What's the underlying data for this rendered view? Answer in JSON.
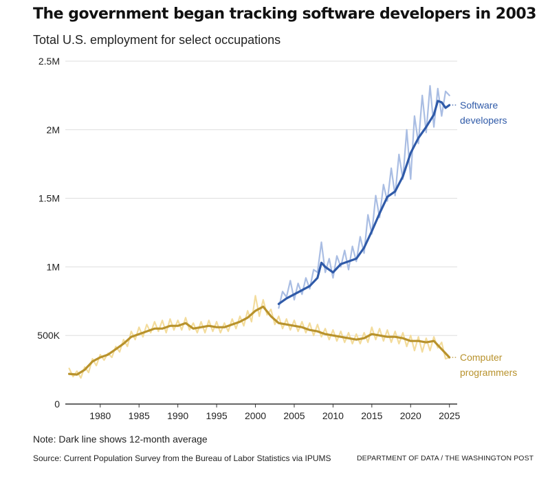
{
  "title": "The government began tracking software developers in 2003",
  "subtitle": "Total U.S. employment for select occupations",
  "note": "Note: Dark line shows 12-month average",
  "source": "Source: Current Population Survey from the Bureau of Labor Statistics via IPUMS",
  "credit": "DEPARTMENT OF DATA / THE WASHINGTON POST",
  "colors": {
    "software_dark": "#2f5aa8",
    "software_light": "#a9bde3",
    "programmers_dark": "#b8922c",
    "programmers_light": "#f3dc9c",
    "grid": "#dddddd",
    "axis": "#333333"
  },
  "chart_data": {
    "type": "line",
    "xlim": [
      1975.5,
      2026
    ],
    "ylim": [
      0,
      2500000
    ],
    "x_ticks": [
      1980,
      1985,
      1990,
      1995,
      2000,
      2005,
      2010,
      2015,
      2020,
      2025
    ],
    "x_tick_labels": [
      "1980",
      "1985",
      "1990",
      "1995",
      "2000",
      "2005",
      "2010",
      "2015",
      "2020",
      "2025"
    ],
    "y_ticks": [
      0,
      500000,
      1000000,
      1500000,
      2000000,
      2500000
    ],
    "y_tick_labels": [
      "0",
      "500K",
      "1M",
      "1.5M",
      "2M",
      "2.5M"
    ],
    "grid": true,
    "series": [
      {
        "name": "Software developers",
        "label_lines": [
          "Software",
          "developers"
        ],
        "color": "#2f5aa8",
        "light_color": "#a9bde3",
        "average": {
          "x": [
            2003,
            2004,
            2005,
            2006,
            2007,
            2008,
            2008.5,
            2009,
            2010,
            2011,
            2012,
            2013,
            2014,
            2015,
            2016,
            2017,
            2018,
            2019,
            2020,
            2021,
            2022,
            2023,
            2023.5,
            2024,
            2024.5,
            2025
          ],
          "y": [
            730000,
            770000,
            800000,
            830000,
            860000,
            920000,
            1030000,
            1000000,
            960000,
            1020000,
            1040000,
            1060000,
            1140000,
            1260000,
            1390000,
            1510000,
            1550000,
            1660000,
            1830000,
            1940000,
            2020000,
            2110000,
            2210000,
            2200000,
            2160000,
            2180000
          ]
        },
        "monthly": {
          "x": [
            2003,
            2003.5,
            2004,
            2004.5,
            2005,
            2005.5,
            2006,
            2006.5,
            2007,
            2007.5,
            2008,
            2008.5,
            2009,
            2009.5,
            2010,
            2010.5,
            2011,
            2011.5,
            2012,
            2012.5,
            2013,
            2013.5,
            2014,
            2014.5,
            2015,
            2015.5,
            2016,
            2016.5,
            2017,
            2017.5,
            2018,
            2018.5,
            2019,
            2019.5,
            2020,
            2020.5,
            2021,
            2021.5,
            2022,
            2022.5,
            2023,
            2023.5,
            2024,
            2024.5,
            2025
          ],
          "y": [
            700000,
            820000,
            780000,
            900000,
            760000,
            880000,
            800000,
            920000,
            840000,
            980000,
            960000,
            1180000,
            960000,
            1060000,
            920000,
            1080000,
            1000000,
            1120000,
            980000,
            1150000,
            1040000,
            1220000,
            1100000,
            1380000,
            1240000,
            1520000,
            1360000,
            1600000,
            1480000,
            1720000,
            1520000,
            1820000,
            1640000,
            2000000,
            1640000,
            2100000,
            1900000,
            2250000,
            1980000,
            2320000,
            2020000,
            2300000,
            2100000,
            2280000,
            2250000
          ]
        }
      },
      {
        "name": "Computer programmers",
        "label_lines": [
          "Computer",
          "programmers"
        ],
        "color": "#b8922c",
        "light_color": "#f3dc9c",
        "average": {
          "x": [
            1976,
            1977,
            1978,
            1979,
            1980,
            1981,
            1982,
            1983,
            1984,
            1985,
            1986,
            1987,
            1988,
            1989,
            1990,
            1991,
            1992,
            1993,
            1994,
            1995,
            1996,
            1997,
            1998,
            1999,
            2000,
            2001,
            2002,
            2003,
            2004,
            2005,
            2006,
            2007,
            2008,
            2009,
            2010,
            2011,
            2012,
            2013,
            2014,
            2015,
            2016,
            2017,
            2018,
            2019,
            2020,
            2021,
            2022,
            2023,
            2024,
            2025
          ],
          "y": [
            220000,
            215000,
            250000,
            310000,
            340000,
            360000,
            400000,
            440000,
            490000,
            510000,
            530000,
            550000,
            550000,
            570000,
            570000,
            590000,
            550000,
            560000,
            570000,
            560000,
            560000,
            580000,
            600000,
            630000,
            680000,
            710000,
            640000,
            590000,
            580000,
            570000,
            560000,
            540000,
            530000,
            510000,
            500000,
            490000,
            480000,
            470000,
            480000,
            510000,
            500000,
            490000,
            490000,
            480000,
            460000,
            460000,
            450000,
            460000,
            400000,
            340000
          ]
        },
        "monthly": {
          "x": [
            1976,
            1976.5,
            1977,
            1977.5,
            1978,
            1978.5,
            1979,
            1979.5,
            1980,
            1980.5,
            1981,
            1981.5,
            1982,
            1982.5,
            1983,
            1983.5,
            1984,
            1984.5,
            1985,
            1985.5,
            1986,
            1986.5,
            1987,
            1987.5,
            1988,
            1988.5,
            1989,
            1989.5,
            1990,
            1990.5,
            1991,
            1991.5,
            1992,
            1992.5,
            1993,
            1993.5,
            1994,
            1994.5,
            1995,
            1995.5,
            1996,
            1996.5,
            1997,
            1997.5,
            1998,
            1998.5,
            1999,
            1999.5,
            2000,
            2000.5,
            2001,
            2001.5,
            2002,
            2002.5,
            2003,
            2003.5,
            2004,
            2004.5,
            2005,
            2005.5,
            2006,
            2006.5,
            2007,
            2007.5,
            2008,
            2008.5,
            2009,
            2009.5,
            2010,
            2010.5,
            2011,
            2011.5,
            2012,
            2012.5,
            2013,
            2013.5,
            2014,
            2014.5,
            2015,
            2015.5,
            2016,
            2016.5,
            2017,
            2017.5,
            2018,
            2018.5,
            2019,
            2019.5,
            2020,
            2020.5,
            2021,
            2021.5,
            2022,
            2022.5,
            2023,
            2023.5,
            2024,
            2024.5,
            2025
          ],
          "y": [
            260000,
            200000,
            240000,
            190000,
            270000,
            230000,
            330000,
            280000,
            360000,
            320000,
            370000,
            340000,
            420000,
            380000,
            470000,
            420000,
            530000,
            470000,
            560000,
            490000,
            580000,
            520000,
            600000,
            530000,
            610000,
            520000,
            620000,
            540000,
            610000,
            540000,
            630000,
            540000,
            590000,
            520000,
            600000,
            520000,
            610000,
            530000,
            600000,
            520000,
            590000,
            530000,
            620000,
            550000,
            640000,
            570000,
            680000,
            600000,
            790000,
            640000,
            760000,
            650000,
            690000,
            580000,
            640000,
            550000,
            620000,
            540000,
            610000,
            530000,
            600000,
            520000,
            590000,
            500000,
            580000,
            490000,
            550000,
            470000,
            540000,
            460000,
            530000,
            450000,
            520000,
            440000,
            510000,
            440000,
            520000,
            450000,
            560000,
            470000,
            550000,
            460000,
            540000,
            450000,
            530000,
            440000,
            520000,
            420000,
            500000,
            390000,
            490000,
            380000,
            480000,
            390000,
            490000,
            410000,
            450000,
            330000,
            340000
          ]
        }
      }
    ]
  }
}
